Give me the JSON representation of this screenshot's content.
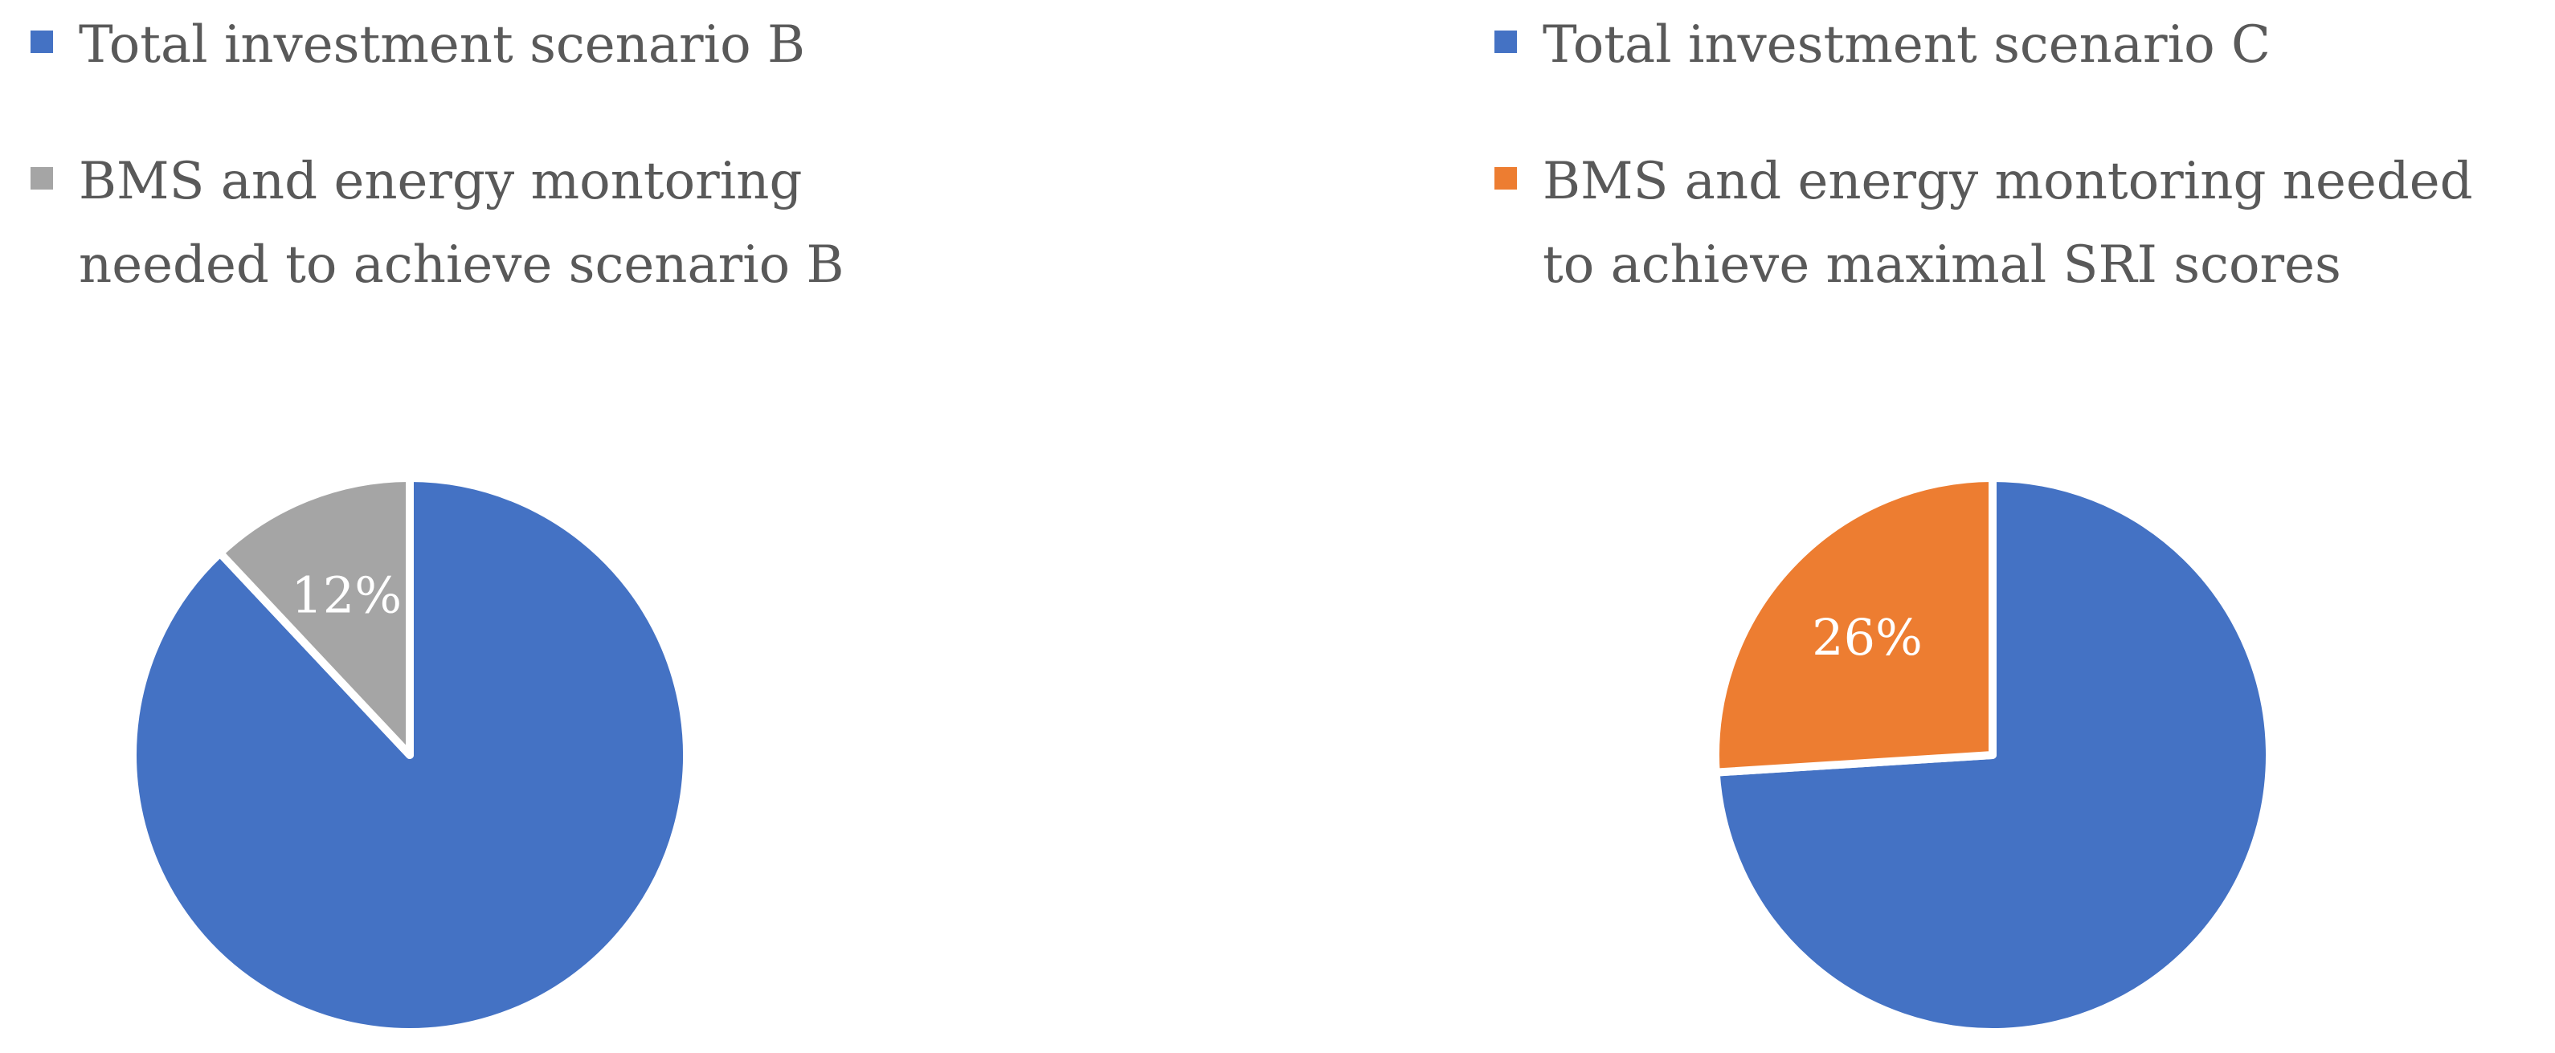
{
  "chart_data": [
    {
      "type": "pie",
      "legend_position": "top",
      "slices": [
        {
          "label": "Total investment scenario B",
          "value": 88,
          "color": "#4472C4",
          "data_label": ""
        },
        {
          "label": "BMS and energy montoring needed to achieve scenario B",
          "value": 12,
          "color": "#A5A5A5",
          "data_label": "12%"
        }
      ]
    },
    {
      "type": "pie",
      "legend_position": "top",
      "slices": [
        {
          "label": "Total investment scenario C",
          "value": 74,
          "color": "#4472C4",
          "data_label": ""
        },
        {
          "label": "BMS and energy montoring needed to achieve maximal SRI scores",
          "value": 26,
          "color": "#ED7D31",
          "data_label": "26%"
        }
      ]
    }
  ]
}
